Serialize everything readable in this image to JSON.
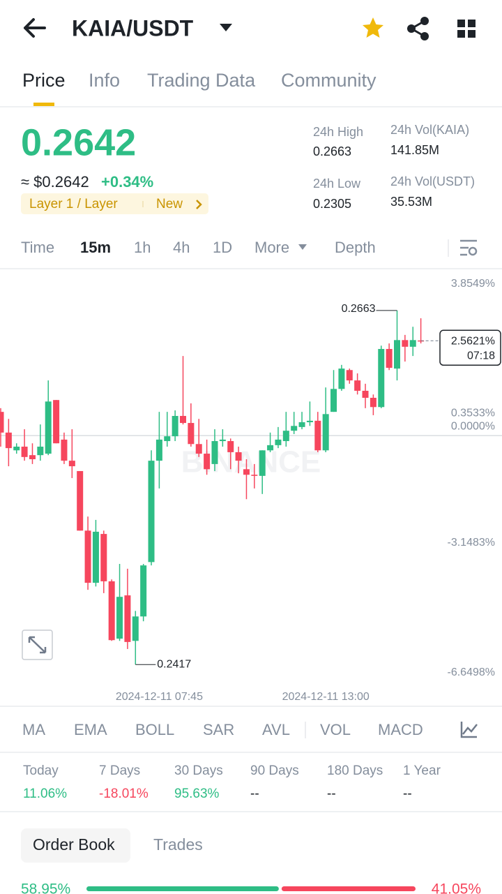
{
  "header": {
    "title": "KAIA/USDT"
  },
  "tabs": [
    "Price",
    "Info",
    "Trading Data",
    "Community"
  ],
  "price": {
    "last": "0.2642",
    "approx": "≈ $0.2642",
    "change": "+0.34%",
    "tag": "Layer 1 / Layer",
    "tag_badge": "New"
  },
  "stats": [
    {
      "label": "24h High",
      "value": "0.2663"
    },
    {
      "label": "24h Low",
      "value": "0.2305"
    },
    {
      "label": "24h Vol(KAIA)",
      "value": "141.85M"
    },
    {
      "label": "24h Vol(USDT)",
      "value": "35.53M"
    }
  ],
  "timeframes": [
    "Time",
    "15m",
    "1h",
    "4h",
    "1D",
    "More",
    "Depth"
  ],
  "chart_data": {
    "type": "candlestick",
    "watermark": "BINANCE",
    "up_color": "#2ebd85",
    "down_color": "#f6465d",
    "ylim": [
      -7.28,
      4.51
    ],
    "yticks": [
      {
        "value": 3.8549,
        "label": "3.8549%"
      },
      {
        "value": 0.3533,
        "label": "0.3533%"
      },
      {
        "value": 0,
        "label": "0.0000%"
      },
      {
        "value": -3.1483,
        "label": "-3.1483%"
      },
      {
        "value": -6.6498,
        "label": "-6.6498%"
      }
    ],
    "grid": false,
    "categories": [
      null,
      null,
      null,
      null,
      null,
      null,
      null,
      null,
      null,
      null,
      null,
      null,
      null,
      null,
      null,
      null,
      null,
      null,
      null,
      null,
      "2024-12-11 07:45",
      null,
      null,
      null,
      null,
      null,
      null,
      null,
      null,
      null,
      null,
      null,
      null,
      null,
      null,
      null,
      null,
      null,
      null,
      null,
      null,
      "2024-12-11 13:00",
      null,
      null,
      null,
      null,
      null,
      null,
      null,
      null,
      null,
      null,
      null,
      null
    ],
    "open": [
      0.64,
      0.08,
      -0.4,
      -0.3,
      -0.53,
      -0.53,
      -0.49,
      0.96,
      -0.11,
      -0.68,
      -0.96,
      -2.57,
      -3.98,
      -2.66,
      -3.94,
      -5.49,
      -4.32,
      -5.55,
      -4.89,
      -3.42,
      -0.68,
      -0.15,
      -0.02,
      0.53,
      0.34,
      -0.23,
      -0.49,
      -0.77,
      -0.15,
      -0.15,
      -0.45,
      -0.91,
      -1.06,
      -1.09,
      -0.4,
      -0.26,
      -0.15,
      0.13,
      0.23,
      0.36,
      0.4,
      -0.4,
      0.64,
      1.26,
      1.77,
      1.49,
      1.21,
      1.02,
      0.77,
      2.34,
      1.81,
      2.58,
      2.4,
      2.57
    ],
    "high": [
      0.74,
      0.45,
      -0.21,
      0.17,
      -0.21,
      0.3,
      1.49,
      0.96,
      0.08,
      0.17,
      -0.96,
      -2.19,
      -2.28,
      -2.57,
      -3.89,
      -3.47,
      -3.6,
      -4.74,
      -3.47,
      -0.4,
      0.64,
      0.64,
      0.68,
      2.15,
      0.87,
      0.45,
      -0.11,
      0.17,
      0.17,
      -0.08,
      -0.3,
      -0.64,
      -0.77,
      -0.4,
      0.08,
      0.23,
      0.64,
      0.64,
      0.64,
      0.92,
      0.64,
      1.3,
      1.77,
      1.91,
      1.81,
      1.68,
      1.4,
      1.11,
      2.43,
      2.49,
      3.38,
      2.72,
      2.94,
      3.17
    ],
    "low": [
      -0.3,
      -0.83,
      -0.49,
      -0.68,
      -0.77,
      -0.68,
      -0.53,
      -0.21,
      -0.77,
      -1.15,
      -2.57,
      -4.17,
      -4.08,
      -4.26,
      -5.55,
      -5.55,
      -5.77,
      -6.19,
      -5.02,
      -3.51,
      -1.43,
      -0.3,
      -0.15,
      0.3,
      -0.3,
      -0.58,
      -1.06,
      -0.96,
      -0.3,
      -0.91,
      -1.02,
      -1.72,
      -1.43,
      -1.58,
      -0.45,
      -0.34,
      -0.3,
      0.04,
      0.17,
      0.26,
      -0.45,
      -0.45,
      0.64,
      1.21,
      1.4,
      1.11,
      0.74,
      0.55,
      0.74,
      1.77,
      1.49,
      2.0,
      2.15,
      2.49
    ],
    "close": [
      0.08,
      -0.34,
      -0.3,
      -0.58,
      -0.64,
      -0.3,
      0.92,
      -0.21,
      -0.68,
      -0.83,
      -2.57,
      -3.98,
      -2.6,
      -3.94,
      -5.53,
      -4.36,
      -5.58,
      -4.89,
      -3.51,
      -0.68,
      -0.11,
      -0.02,
      0.53,
      0.34,
      -0.23,
      -0.49,
      -0.91,
      -0.15,
      -0.11,
      -0.45,
      -0.68,
      -1.06,
      -1.09,
      -0.4,
      -0.26,
      -0.11,
      0.13,
      0.26,
      0.36,
      0.4,
      -0.4,
      0.58,
      1.26,
      1.81,
      1.49,
      1.21,
      1.02,
      0.77,
      2.34,
      1.83,
      2.58,
      2.4,
      2.58,
      2.56
    ],
    "high_label": "0.2663",
    "low_label": "0.2417",
    "current": {
      "value": 2.5621,
      "label": "2.5621%",
      "time": "07:18"
    }
  },
  "indicators": [
    "MA",
    "EMA",
    "BOLL",
    "SAR",
    "AVL",
    "VOL",
    "MACD"
  ],
  "performance": [
    {
      "label": "Today",
      "value": "11.06%"
    },
    {
      "label": "7 Days",
      "value": "-18.01%"
    },
    {
      "label": "30 Days",
      "value": "95.63%"
    },
    {
      "label": "90 Days",
      "value": "--"
    },
    {
      "label": "180 Days",
      "value": "--"
    },
    {
      "label": "1 Year",
      "value": "--"
    }
  ],
  "book_tabs": [
    "Order Book",
    "Trades"
  ],
  "book_ratio": {
    "buy": {
      "value": 58.95,
      "label": "58.95%"
    },
    "sell": {
      "value": 41.05,
      "label": "41.05%"
    }
  }
}
